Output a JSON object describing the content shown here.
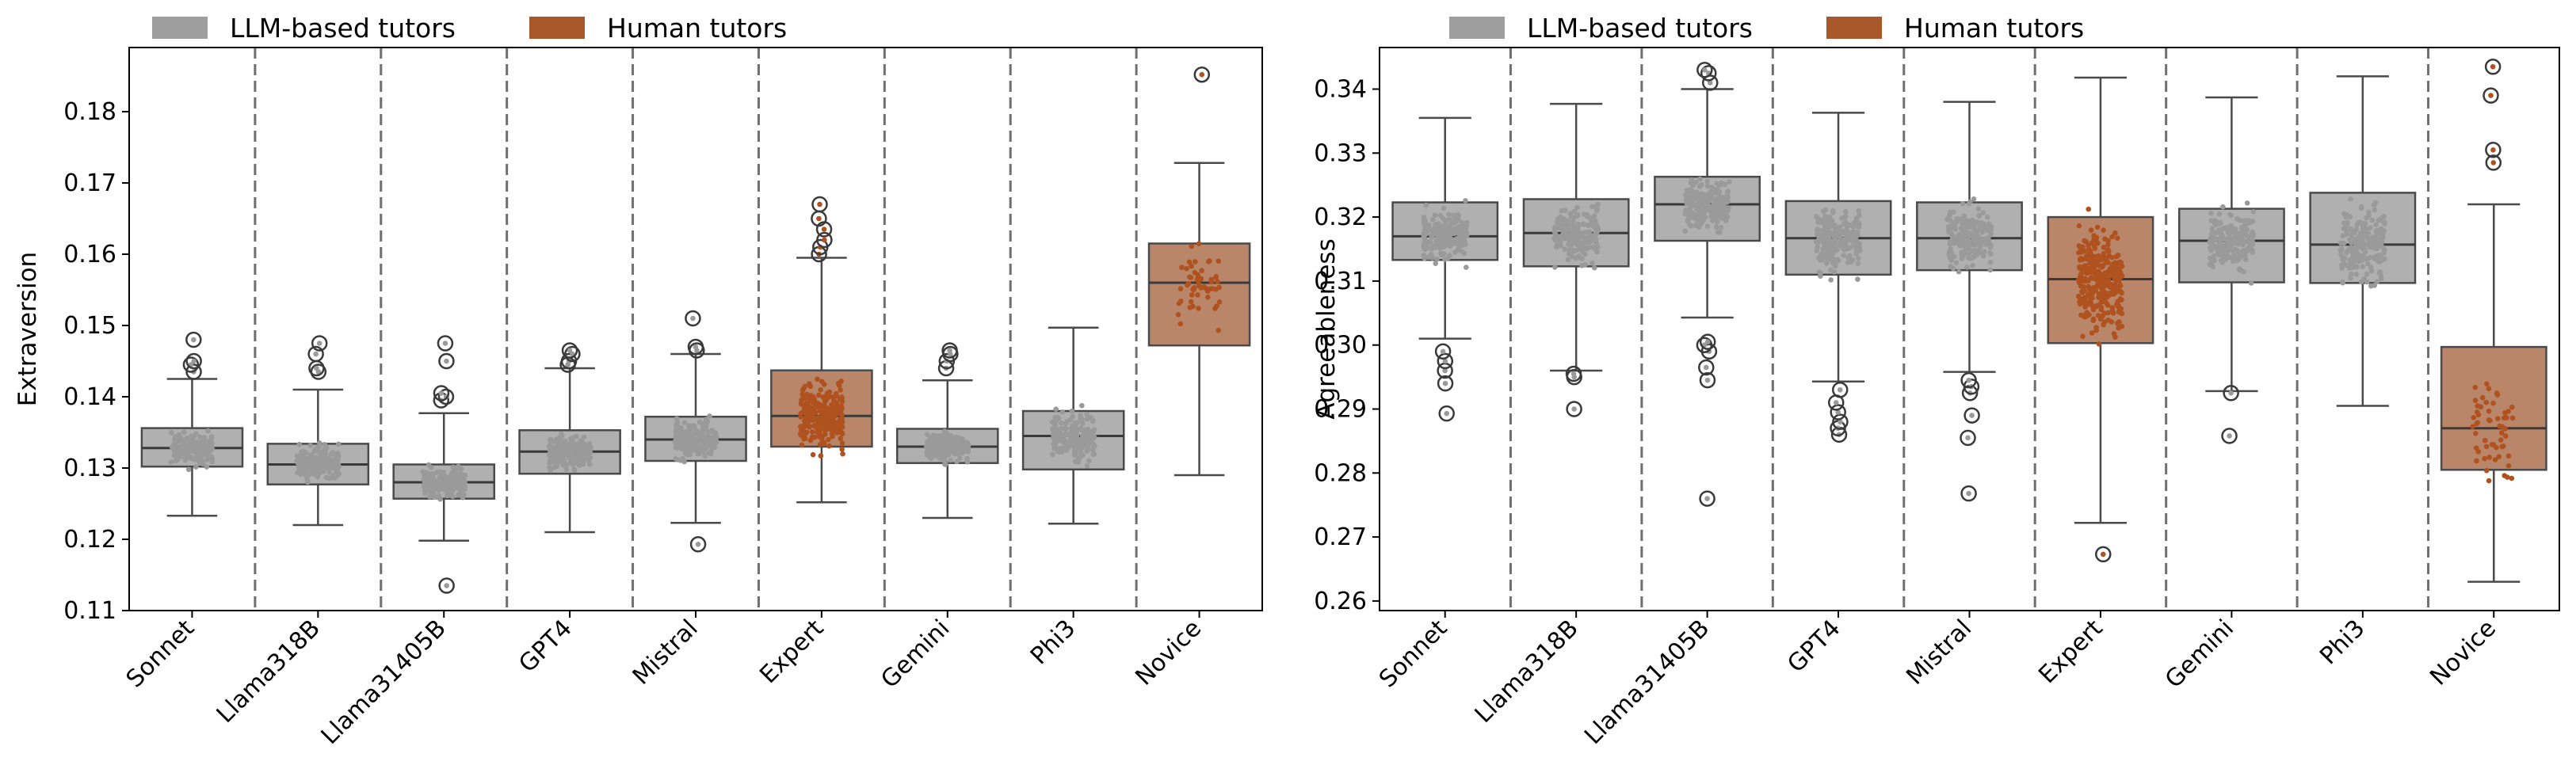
{
  "legend": {
    "llm_label": "LLM-based tutors",
    "human_label": "Human tutors"
  },
  "colors": {
    "llm_box": "#b0b0b0",
    "llm_points": "#9a9a9a",
    "human_box": "#b9866a",
    "human_points": "#b0521f",
    "legend_llm": "#9e9e9e",
    "legend_human": "#a8582b",
    "divider": "#6f6f6f"
  },
  "chart_data": [
    {
      "type": "box",
      "ylabel": "Extraversion",
      "ylim": [
        0.11,
        0.189
      ],
      "yticks": [
        0.11,
        0.12,
        0.13,
        0.14,
        0.15,
        0.16,
        0.17,
        0.18
      ],
      "categories": [
        "Sonnet",
        "Llama318B",
        "Llama31405B",
        "GPT4",
        "Mistral",
        "Expert",
        "Gemini",
        "Phi3",
        "Novice"
      ],
      "groups": [
        "LLM-based tutors",
        "LLM-based tutors",
        "LLM-based tutors",
        "LLM-based tutors",
        "LLM-based tutors",
        "Human tutors",
        "LLM-based tutors",
        "LLM-based tutors",
        "Human tutors"
      ],
      "boxes": [
        {
          "whislo": 0.1233,
          "q1": 0.1302,
          "med": 0.1328,
          "q3": 0.1356,
          "whishi": 0.1425,
          "fliers": [
            0.1435,
            0.1445,
            0.145,
            0.148
          ],
          "n": 200
        },
        {
          "whislo": 0.122,
          "q1": 0.1277,
          "med": 0.1305,
          "q3": 0.1334,
          "whishi": 0.141,
          "fliers": [
            0.1435,
            0.144,
            0.146,
            0.1475
          ],
          "n": 200
        },
        {
          "whislo": 0.1198,
          "q1": 0.1257,
          "med": 0.128,
          "q3": 0.1305,
          "whishi": 0.1377,
          "fliers": [
            0.1135,
            0.1395,
            0.14,
            0.1405,
            0.145,
            0.1475
          ],
          "n": 200
        },
        {
          "whislo": 0.121,
          "q1": 0.1292,
          "med": 0.1323,
          "q3": 0.1353,
          "whishi": 0.144,
          "fliers": [
            0.1445,
            0.145,
            0.146,
            0.1465
          ],
          "n": 200
        },
        {
          "whislo": 0.1223,
          "q1": 0.131,
          "med": 0.134,
          "q3": 0.1372,
          "whishi": 0.146,
          "fliers": [
            0.1193,
            0.1465,
            0.147,
            0.151
          ],
          "n": 200
        },
        {
          "whislo": 0.1252,
          "q1": 0.133,
          "med": 0.1373,
          "q3": 0.1437,
          "whishi": 0.1595,
          "fliers": [
            0.16,
            0.161,
            0.162,
            0.1635,
            0.165,
            0.167
          ],
          "n": 280
        },
        {
          "whislo": 0.123,
          "q1": 0.1307,
          "med": 0.133,
          "q3": 0.1355,
          "whishi": 0.1423,
          "fliers": [
            0.144,
            0.145,
            0.146,
            0.1465
          ],
          "n": 200
        },
        {
          "whislo": 0.1222,
          "q1": 0.1298,
          "med": 0.1345,
          "q3": 0.138,
          "whishi": 0.1497,
          "fliers": [],
          "n": 200
        },
        {
          "whislo": 0.129,
          "q1": 0.1472,
          "med": 0.156,
          "q3": 0.1615,
          "whishi": 0.1728,
          "fliers": [
            0.1852
          ],
          "n": 55
        }
      ]
    },
    {
      "type": "box",
      "ylabel": "Agreeableness",
      "ylim": [
        0.2585,
        0.3465
      ],
      "yticks": [
        0.26,
        0.27,
        0.28,
        0.29,
        0.3,
        0.31,
        0.32,
        0.33,
        0.34
      ],
      "categories": [
        "Sonnet",
        "Llama318B",
        "Llama31405B",
        "GPT4",
        "Mistral",
        "Expert",
        "Gemini",
        "Phi3",
        "Novice"
      ],
      "groups": [
        "LLM-based tutors",
        "LLM-based tutors",
        "LLM-based tutors",
        "LLM-based tutors",
        "LLM-based tutors",
        "Human tutors",
        "LLM-based tutors",
        "LLM-based tutors",
        "Human tutors"
      ],
      "boxes": [
        {
          "whislo": 0.301,
          "q1": 0.3133,
          "med": 0.317,
          "q3": 0.3223,
          "whishi": 0.3355,
          "fliers": [
            0.2893,
            0.294,
            0.296,
            0.2975,
            0.299
          ],
          "n": 200
        },
        {
          "whislo": 0.296,
          "q1": 0.3123,
          "med": 0.3175,
          "q3": 0.3228,
          "whishi": 0.3377,
          "fliers": [
            0.29,
            0.295,
            0.2955
          ],
          "n": 200
        },
        {
          "whislo": 0.3043,
          "q1": 0.3163,
          "med": 0.322,
          "q3": 0.3263,
          "whishi": 0.34,
          "fliers": [
            0.276,
            0.2945,
            0.2965,
            0.299,
            0.3,
            0.3005,
            0.341,
            0.3425,
            0.343
          ],
          "n": 200
        },
        {
          "whislo": 0.2943,
          "q1": 0.311,
          "med": 0.3167,
          "q3": 0.3225,
          "whishi": 0.3363,
          "fliers": [
            0.286,
            0.287,
            0.288,
            0.2895,
            0.291,
            0.293
          ],
          "n": 200
        },
        {
          "whislo": 0.2958,
          "q1": 0.3117,
          "med": 0.3167,
          "q3": 0.3223,
          "whishi": 0.338,
          "fliers": [
            0.2768,
            0.2855,
            0.289,
            0.2925,
            0.2935,
            0.2945
          ],
          "n": 200
        },
        {
          "whislo": 0.2722,
          "q1": 0.3003,
          "med": 0.3103,
          "q3": 0.32,
          "whishi": 0.3418,
          "fliers": [
            0.2673
          ],
          "n": 280
        },
        {
          "whislo": 0.2928,
          "q1": 0.3098,
          "med": 0.3163,
          "q3": 0.3213,
          "whishi": 0.3387,
          "fliers": [
            0.2858,
            0.2925
          ],
          "n": 200
        },
        {
          "whislo": 0.2905,
          "q1": 0.3097,
          "med": 0.3157,
          "q3": 0.3238,
          "whishi": 0.342,
          "fliers": [],
          "n": 200
        },
        {
          "whislo": 0.263,
          "q1": 0.2805,
          "med": 0.287,
          "q3": 0.2997,
          "whishi": 0.322,
          "fliers": [
            0.3285,
            0.3305,
            0.339,
            0.3435
          ],
          "n": 55
        }
      ]
    }
  ]
}
